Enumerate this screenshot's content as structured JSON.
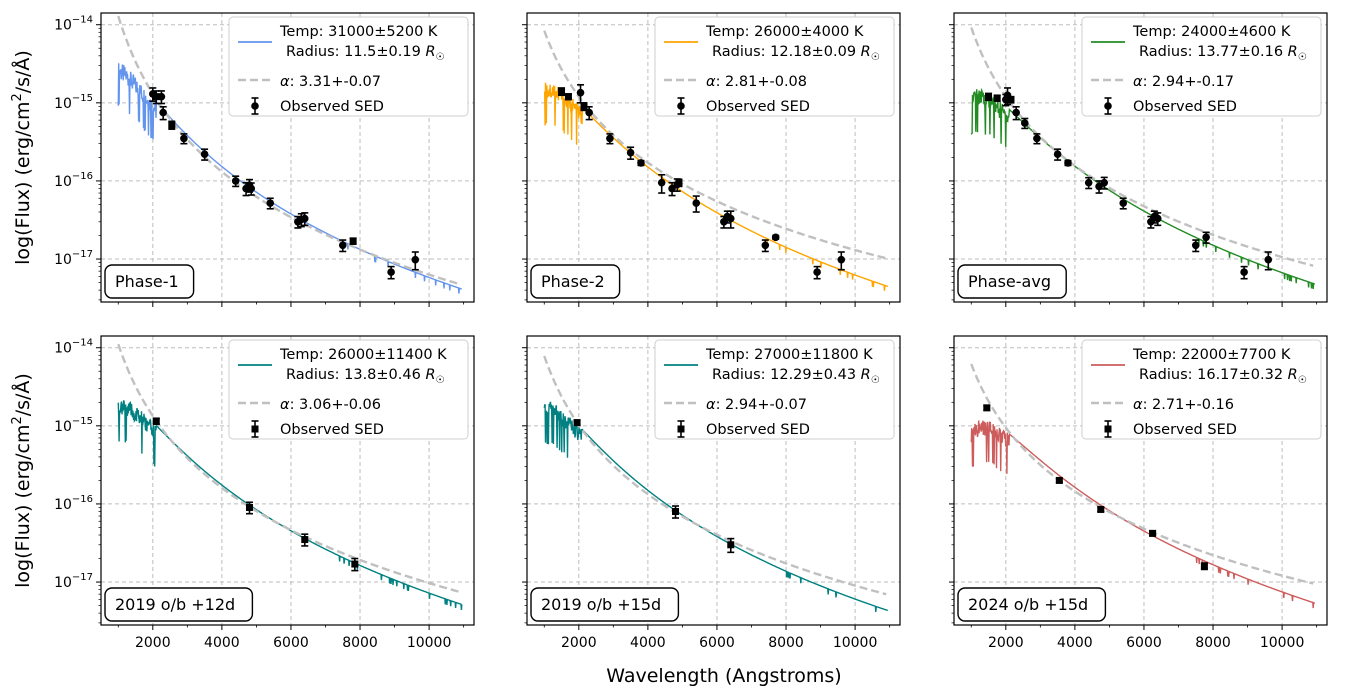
{
  "figure": {
    "xlabel": "Wavelength (Angstroms)",
    "ylabel": "log(Flux) (erg/cm²/s/Å)",
    "ylabel_parts": [
      "log(Flux) (erg/cm",
      "2",
      "/s/Å)"
    ],
    "legend_observed_label": "Observed SED"
  },
  "chart_data": [
    {
      "type": "scatter",
      "panel_label": "Phase-1",
      "xlim": [
        500,
        11300
      ],
      "ylim_log10": [
        -17.55,
        -13.85
      ],
      "yscale": "log",
      "xticks": [
        2000,
        4000,
        6000,
        8000,
        10000
      ],
      "yticks_exponents": [
        -17,
        -16,
        -15,
        -14
      ],
      "grid": true,
      "legend_position": "top-right",
      "panel_label_position": "bottom-left",
      "model": {
        "temp_label": "Temp: 31000±5200 K",
        "radius_value": "Radius: 11.5±0.19",
        "color": "#6495ed",
        "Teff": 31000
      },
      "powerlaw": {
        "alpha_label": "3.31+-0.07",
        "alpha": 3.31,
        "anchor": [
          2000,
          1.3e-15
        ],
        "color": "#c0c0c0"
      },
      "observed": [
        {
          "x": 2000,
          "y": 1.3e-15,
          "err": 2.5e-16,
          "marker": "circle"
        },
        {
          "x": 2100,
          "y": 1.2e-15,
          "err": 2.2e-16,
          "marker": "square"
        },
        {
          "x": 2250,
          "y": 1.2e-15,
          "err": 2.2e-16,
          "marker": "circle"
        },
        {
          "x": 2300,
          "y": 7.5e-16,
          "err": 1.4e-16,
          "marker": "circle"
        },
        {
          "x": 2550,
          "y": 5.2e-16,
          "err": 6e-17,
          "marker": "square"
        },
        {
          "x": 2900,
          "y": 3.5e-16,
          "err": 5e-17,
          "marker": "circle"
        },
        {
          "x": 3500,
          "y": 2.2e-16,
          "err": 3.5e-17,
          "marker": "circle"
        },
        {
          "x": 4400,
          "y": 1e-16,
          "err": 1.5e-17,
          "marker": "circle"
        },
        {
          "x": 4700,
          "y": 8e-17,
          "err": 1.5e-17,
          "marker": "circle"
        },
        {
          "x": 4800,
          "y": 8.8e-17,
          "err": 1.6e-17,
          "marker": "circle"
        },
        {
          "x": 4850,
          "y": 8e-17,
          "err": 1.4e-17,
          "marker": "circle"
        },
        {
          "x": 5400,
          "y": 5.2e-17,
          "err": 8e-18,
          "marker": "circle"
        },
        {
          "x": 6200,
          "y": 3e-17,
          "err": 5e-18,
          "marker": "circle"
        },
        {
          "x": 6300,
          "y": 3.2e-17,
          "err": 6e-18,
          "marker": "circle"
        },
        {
          "x": 6400,
          "y": 3.3e-17,
          "err": 6e-18,
          "marker": "circle"
        },
        {
          "x": 7500,
          "y": 1.5e-17,
          "err": 2.5e-18,
          "marker": "circle"
        },
        {
          "x": 7800,
          "y": 1.7e-17,
          "err": 1.5e-18,
          "marker": "square"
        },
        {
          "x": 8900,
          "y": 6.8e-18,
          "err": 1.2e-18,
          "marker": "circle"
        },
        {
          "x": 9600,
          "y": 9.8e-18,
          "err": 2.5e-18,
          "marker": "circle"
        }
      ]
    },
    {
      "type": "scatter",
      "panel_label": "Phase-2",
      "xlim": [
        500,
        11300
      ],
      "ylim_log10": [
        -17.55,
        -13.85
      ],
      "yscale": "log",
      "xticks": [
        2000,
        4000,
        6000,
        8000,
        10000
      ],
      "yticks_exponents": [
        -17,
        -16,
        -15,
        -14
      ],
      "grid": true,
      "legend_position": "top-right",
      "panel_label_position": "bottom-left",
      "model": {
        "temp_label": "Temp: 26000±4000 K",
        "radius_value": "Radius: 12.18±0.09",
        "color": "#ffa500",
        "Teff": 26000
      },
      "powerlaw": {
        "alpha_label": "2.81+-0.08",
        "alpha": 2.81,
        "anchor": [
          2000,
          1.2e-15
        ],
        "color": "#c0c0c0"
      },
      "observed": [
        {
          "x": 1500,
          "y": 1.4e-15,
          "err": 1.5e-16,
          "marker": "square"
        },
        {
          "x": 1700,
          "y": 1.2e-15,
          "err": 1e-16,
          "marker": "square"
        },
        {
          "x": 2050,
          "y": 1.35e-15,
          "err": 3.5e-16,
          "marker": "circle"
        },
        {
          "x": 2150,
          "y": 9e-16,
          "err": 1e-16,
          "marker": "square"
        },
        {
          "x": 2300,
          "y": 7.5e-16,
          "err": 1.4e-16,
          "marker": "circle"
        },
        {
          "x": 2900,
          "y": 3.5e-16,
          "err": 5e-17,
          "marker": "circle"
        },
        {
          "x": 3500,
          "y": 2.3e-16,
          "err": 4e-17,
          "marker": "circle"
        },
        {
          "x": 3800,
          "y": 1.7e-16,
          "err": 1.2e-17,
          "marker": "circle"
        },
        {
          "x": 4400,
          "y": 9.5e-17,
          "err": 2.5e-17,
          "marker": "circle"
        },
        {
          "x": 4700,
          "y": 8e-17,
          "err": 1.5e-17,
          "marker": "circle"
        },
        {
          "x": 4850,
          "y": 9e-17,
          "err": 1.6e-17,
          "marker": "circle"
        },
        {
          "x": 4900,
          "y": 9.5e-17,
          "err": 1e-17,
          "marker": "square"
        },
        {
          "x": 5400,
          "y": 5.2e-17,
          "err": 1.2e-17,
          "marker": "circle"
        },
        {
          "x": 6200,
          "y": 3e-17,
          "err": 5e-18,
          "marker": "circle"
        },
        {
          "x": 6300,
          "y": 3.5e-17,
          "err": 6e-18,
          "marker": "circle"
        },
        {
          "x": 6400,
          "y": 3.3e-17,
          "err": 8e-18,
          "marker": "circle"
        },
        {
          "x": 7400,
          "y": 1.5e-17,
          "err": 2.5e-18,
          "marker": "circle"
        },
        {
          "x": 7700,
          "y": 1.9e-17,
          "err": 1e-18,
          "marker": "circle"
        },
        {
          "x": 8900,
          "y": 6.8e-18,
          "err": 1.2e-18,
          "marker": "circle"
        },
        {
          "x": 9600,
          "y": 9.8e-18,
          "err": 2.5e-18,
          "marker": "circle"
        }
      ]
    },
    {
      "type": "scatter",
      "panel_label": "Phase-avg",
      "xlim": [
        500,
        11300
      ],
      "ylim_log10": [
        -17.55,
        -13.85
      ],
      "yscale": "log",
      "xticks": [
        2000,
        4000,
        6000,
        8000,
        10000
      ],
      "yticks_exponents": [
        -17,
        -16,
        -15,
        -14
      ],
      "grid": true,
      "legend_position": "top-right",
      "panel_label_position": "bottom-left",
      "model": {
        "temp_label": "Temp: 24000±4600 K",
        "radius_value": "Radius: 13.77±0.16",
        "color": "#228b22",
        "Teff": 24000
      },
      "powerlaw": {
        "alpha_label": "2.94+-0.17",
        "alpha": 2.94,
        "anchor": [
          2000,
          1.2e-15
        ],
        "color": "#c0c0c0"
      },
      "observed": [
        {
          "x": 1500,
          "y": 1.2e-15,
          "err": 1.2e-16,
          "marker": "square"
        },
        {
          "x": 1750,
          "y": 1.15e-15,
          "err": 1e-16,
          "marker": "square"
        },
        {
          "x": 2000,
          "y": 1.1e-15,
          "err": 1.8e-16,
          "marker": "circle"
        },
        {
          "x": 2050,
          "y": 1.25e-15,
          "err": 3e-16,
          "marker": "circle"
        },
        {
          "x": 2150,
          "y": 1.1e-15,
          "err": 1e-16,
          "marker": "square"
        },
        {
          "x": 2300,
          "y": 7.5e-16,
          "err": 1.4e-16,
          "marker": "circle"
        },
        {
          "x": 2550,
          "y": 5.5e-16,
          "err": 8e-17,
          "marker": "circle"
        },
        {
          "x": 2900,
          "y": 3.5e-16,
          "err": 5e-17,
          "marker": "circle"
        },
        {
          "x": 3500,
          "y": 2.2e-16,
          "err": 3.5e-17,
          "marker": "circle"
        },
        {
          "x": 3800,
          "y": 1.7e-16,
          "err": 1.2e-17,
          "marker": "circle"
        },
        {
          "x": 4400,
          "y": 9.5e-17,
          "err": 1.5e-17,
          "marker": "circle"
        },
        {
          "x": 4700,
          "y": 8.5e-17,
          "err": 1.5e-17,
          "marker": "circle"
        },
        {
          "x": 4850,
          "y": 9.5e-17,
          "err": 1.6e-17,
          "marker": "circle"
        },
        {
          "x": 5400,
          "y": 5.2e-17,
          "err": 8e-18,
          "marker": "circle"
        },
        {
          "x": 6200,
          "y": 3e-17,
          "err": 5e-18,
          "marker": "circle"
        },
        {
          "x": 6300,
          "y": 3.5e-17,
          "err": 6e-18,
          "marker": "circle"
        },
        {
          "x": 6400,
          "y": 3.3e-17,
          "err": 6e-18,
          "marker": "circle"
        },
        {
          "x": 7500,
          "y": 1.5e-17,
          "err": 2.5e-18,
          "marker": "circle"
        },
        {
          "x": 7800,
          "y": 1.9e-17,
          "err": 3e-18,
          "marker": "circle"
        },
        {
          "x": 8900,
          "y": 6.8e-18,
          "err": 1.2e-18,
          "marker": "circle"
        },
        {
          "x": 9600,
          "y": 9.8e-18,
          "err": 2.5e-18,
          "marker": "circle"
        }
      ]
    },
    {
      "type": "scatter",
      "panel_label": "2019 o/b +12d",
      "xlim": [
        500,
        11300
      ],
      "ylim_log10": [
        -17.55,
        -13.85
      ],
      "yscale": "log",
      "xticks": [
        2000,
        4000,
        6000,
        8000,
        10000
      ],
      "yticks_exponents": [
        -17,
        -16,
        -15,
        -14
      ],
      "grid": true,
      "legend_position": "top-right",
      "panel_label_position": "bottom-left",
      "model": {
        "temp_label": "Temp: 26000±11400 K",
        "radius_value": "Radius: 13.8±0.46",
        "color": "#008080",
        "Teff": 26000
      },
      "powerlaw": {
        "alpha_label": "3.06+-0.06",
        "alpha": 3.06,
        "anchor": [
          2100,
          1.15e-15
        ],
        "color": "#c0c0c0"
      },
      "observed": [
        {
          "x": 2100,
          "y": 1.15e-15,
          "err": 1e-16,
          "marker": "square"
        },
        {
          "x": 4800,
          "y": 9e-17,
          "err": 1.5e-17,
          "marker": "square"
        },
        {
          "x": 6400,
          "y": 3.5e-17,
          "err": 6e-18,
          "marker": "square"
        },
        {
          "x": 7850,
          "y": 1.7e-17,
          "err": 3e-18,
          "marker": "square"
        }
      ]
    },
    {
      "type": "scatter",
      "panel_label": "2019 o/b +15d",
      "xlim": [
        500,
        11300
      ],
      "ylim_log10": [
        -17.55,
        -13.85
      ],
      "yscale": "log",
      "xticks": [
        2000,
        4000,
        6000,
        8000,
        10000
      ],
      "yticks_exponents": [
        -17,
        -16,
        -15,
        -14
      ],
      "grid": true,
      "legend_position": "top-right",
      "panel_label_position": "bottom-left",
      "model": {
        "temp_label": "Temp: 27000±11800 K",
        "radius_value": "Radius: 12.29±0.43",
        "color": "#008080",
        "Teff": 27000
      },
      "powerlaw": {
        "alpha_label": "2.94+-0.07",
        "alpha": 2.94,
        "anchor": [
          1950,
          1.1e-15
        ],
        "color": "#c0c0c0"
      },
      "observed": [
        {
          "x": 1950,
          "y": 1.1e-15,
          "err": 8e-17,
          "marker": "square"
        },
        {
          "x": 4800,
          "y": 8e-17,
          "err": 1.4e-17,
          "marker": "square"
        },
        {
          "x": 6400,
          "y": 3e-17,
          "err": 6e-18,
          "marker": "square"
        }
      ]
    },
    {
      "type": "scatter",
      "panel_label": "2024 o/b +15d",
      "xlim": [
        500,
        11300
      ],
      "ylim_log10": [
        -17.55,
        -13.85
      ],
      "yscale": "log",
      "xticks": [
        2000,
        4000,
        6000,
        8000,
        10000
      ],
      "yticks_exponents": [
        -17,
        -16,
        -15,
        -14
      ],
      "grid": true,
      "legend_position": "top-right",
      "panel_label_position": "bottom-left",
      "model": {
        "temp_label": "Temp: 22000±7700 K",
        "radius_value": "Radius: 16.17±0.32",
        "color": "#cd5c5c",
        "Teff": 22000
      },
      "powerlaw": {
        "alpha_label": "2.71+-0.16",
        "alpha": 2.71,
        "anchor": [
          3550,
          2e-16
        ],
        "color": "#c0c0c0"
      },
      "observed": [
        {
          "x": 1450,
          "y": 1.7e-15,
          "err": 1.2e-16,
          "marker": "square"
        },
        {
          "x": 3550,
          "y": 2e-16,
          "err": 1.2e-17,
          "marker": "square"
        },
        {
          "x": 4750,
          "y": 8.5e-17,
          "err": 5e-18,
          "marker": "square"
        },
        {
          "x": 6250,
          "y": 4.2e-17,
          "err": 3e-18,
          "marker": "square"
        },
        {
          "x": 7750,
          "y": 1.6e-17,
          "err": 1.5e-18,
          "marker": "square"
        }
      ]
    }
  ]
}
